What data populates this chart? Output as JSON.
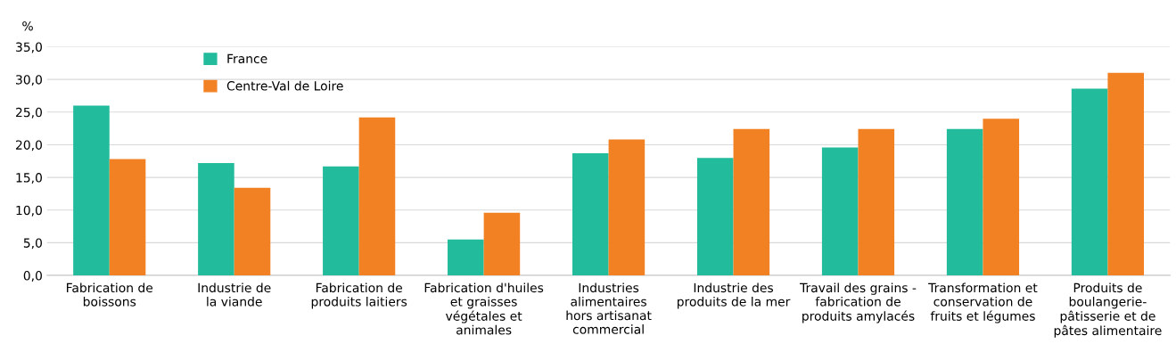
{
  "chart_data": {
    "type": "bar",
    "ylabel": "%",
    "categories": [
      "Fabrication de\nboissons",
      "Industrie de\nla viande",
      "Fabrication de\nproduits laitiers",
      "Fabrication d'huiles\net graisses\nvégétales et\nanimales",
      "Industries\nalimentaires\nhors artisanat\ncommercial",
      "Industrie des\nproduits de la mer",
      "Travail des grains -\nfabrication de\nproduits amylacés",
      "Transformation et\nconservation de\nfruits et légumes",
      "Produits de\nboulangerie-\npâtisserie et de\npâtes alimentaire"
    ],
    "series": [
      {
        "name": "France",
        "color": "#22bb9b",
        "values": [
          26.0,
          17.2,
          16.7,
          5.5,
          18.7,
          18.0,
          19.6,
          22.4,
          28.6
        ]
      },
      {
        "name": "Centre-Val de Loire",
        "color": "#f28123",
        "values": [
          17.8,
          13.4,
          24.2,
          9.6,
          20.8,
          22.4,
          22.4,
          24.0,
          31.0
        ]
      }
    ],
    "ylim": [
      0,
      35
    ],
    "yticks": [
      {
        "value": 0,
        "label": "0,0"
      },
      {
        "value": 5,
        "label": "5,0"
      },
      {
        "value": 10,
        "label": "10,0"
      },
      {
        "value": 15,
        "label": "15,0"
      },
      {
        "value": 20,
        "label": "20,0"
      },
      {
        "value": 25,
        "label": "25,0"
      },
      {
        "value": 30,
        "label": "30,0"
      },
      {
        "value": 35,
        "label": "35,0"
      }
    ],
    "grid": "y",
    "legend": "top left"
  }
}
